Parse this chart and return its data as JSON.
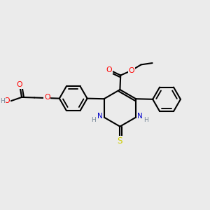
{
  "bg_color": "#ebebeb",
  "bond_color": "#000000",
  "bond_width": 1.5,
  "atom_colors": {
    "O": "#ff0000",
    "N": "#0000cd",
    "S": "#cccc00",
    "H": "#778899",
    "C": "#000000"
  },
  "font_size": 7.5
}
